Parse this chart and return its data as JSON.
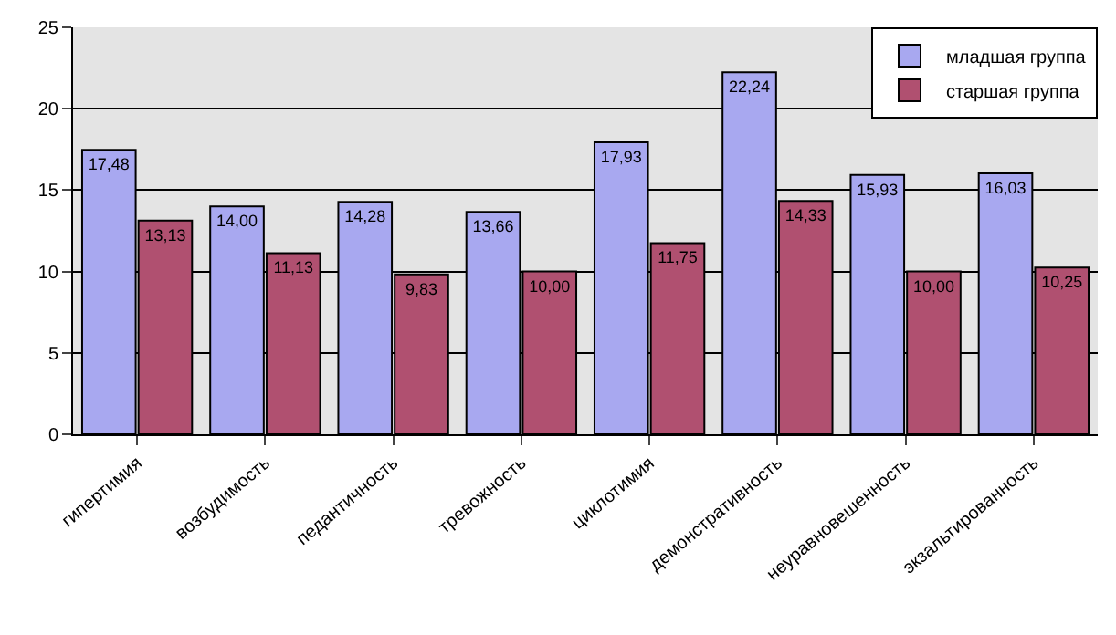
{
  "chart_data": {
    "type": "bar",
    "categories": [
      "гипертимия",
      "возбудимость",
      "педантичность",
      "тревожность",
      "циклотимия",
      "демонстративность",
      "неуравновешенность",
      "экзальтированность"
    ],
    "series": [
      {
        "name": "младшая группа",
        "color": "#a8a8f0",
        "values": [
          17.48,
          14.0,
          14.28,
          13.66,
          17.93,
          22.24,
          15.93,
          16.03
        ],
        "value_labels": [
          "17,48",
          "14,00",
          "14,28",
          "13,66",
          "17,93",
          "22,24",
          "15,93",
          "16,03"
        ]
      },
      {
        "name": "старшая группа",
        "color": "#b05070",
        "values": [
          13.13,
          11.13,
          9.83,
          10.0,
          11.75,
          14.33,
          10.0,
          10.25
        ],
        "value_labels": [
          "13,13",
          "11,13",
          "9,83",
          "10,00",
          "11,75",
          "14,33",
          "10,00",
          "10,25"
        ]
      }
    ],
    "ylim": [
      0,
      25
    ],
    "yticks": [
      0,
      5,
      10,
      15,
      20,
      25
    ],
    "grid": "y",
    "legend": "top right"
  }
}
